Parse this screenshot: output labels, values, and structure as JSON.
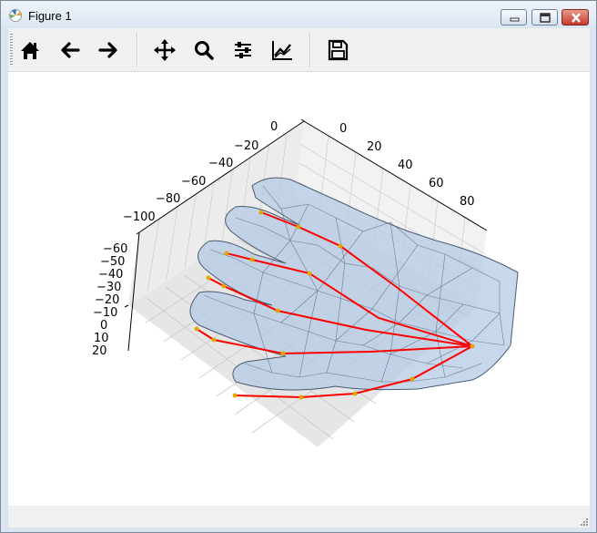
{
  "window": {
    "title": "Figure 1"
  },
  "toolbar": {
    "buttons": [
      {
        "icon": "home-icon"
      },
      {
        "icon": "arrow-left-icon"
      },
      {
        "icon": "arrow-right-icon"
      },
      {
        "icon": "move-icon"
      },
      {
        "icon": "zoom-icon"
      },
      {
        "icon": "sliders-icon"
      },
      {
        "icon": "line-chart-icon"
      },
      {
        "icon": "save-icon"
      }
    ]
  },
  "axes": {
    "y_ticks": [
      "0",
      "20",
      "40",
      "60",
      "80"
    ],
    "x_ticks": [
      "0",
      "−20",
      "−40",
      "−60",
      "−80",
      "−100"
    ],
    "z_ticks": [
      "−60",
      "−50",
      "−40",
      "−30",
      "−20",
      "−10",
      "0",
      "10",
      "20"
    ]
  },
  "colors": {
    "skeleton": "#ff0000",
    "joints": "#e0a800",
    "mesh_fill": "#b5cbe6",
    "mesh_edge": "#4a5a70"
  }
}
